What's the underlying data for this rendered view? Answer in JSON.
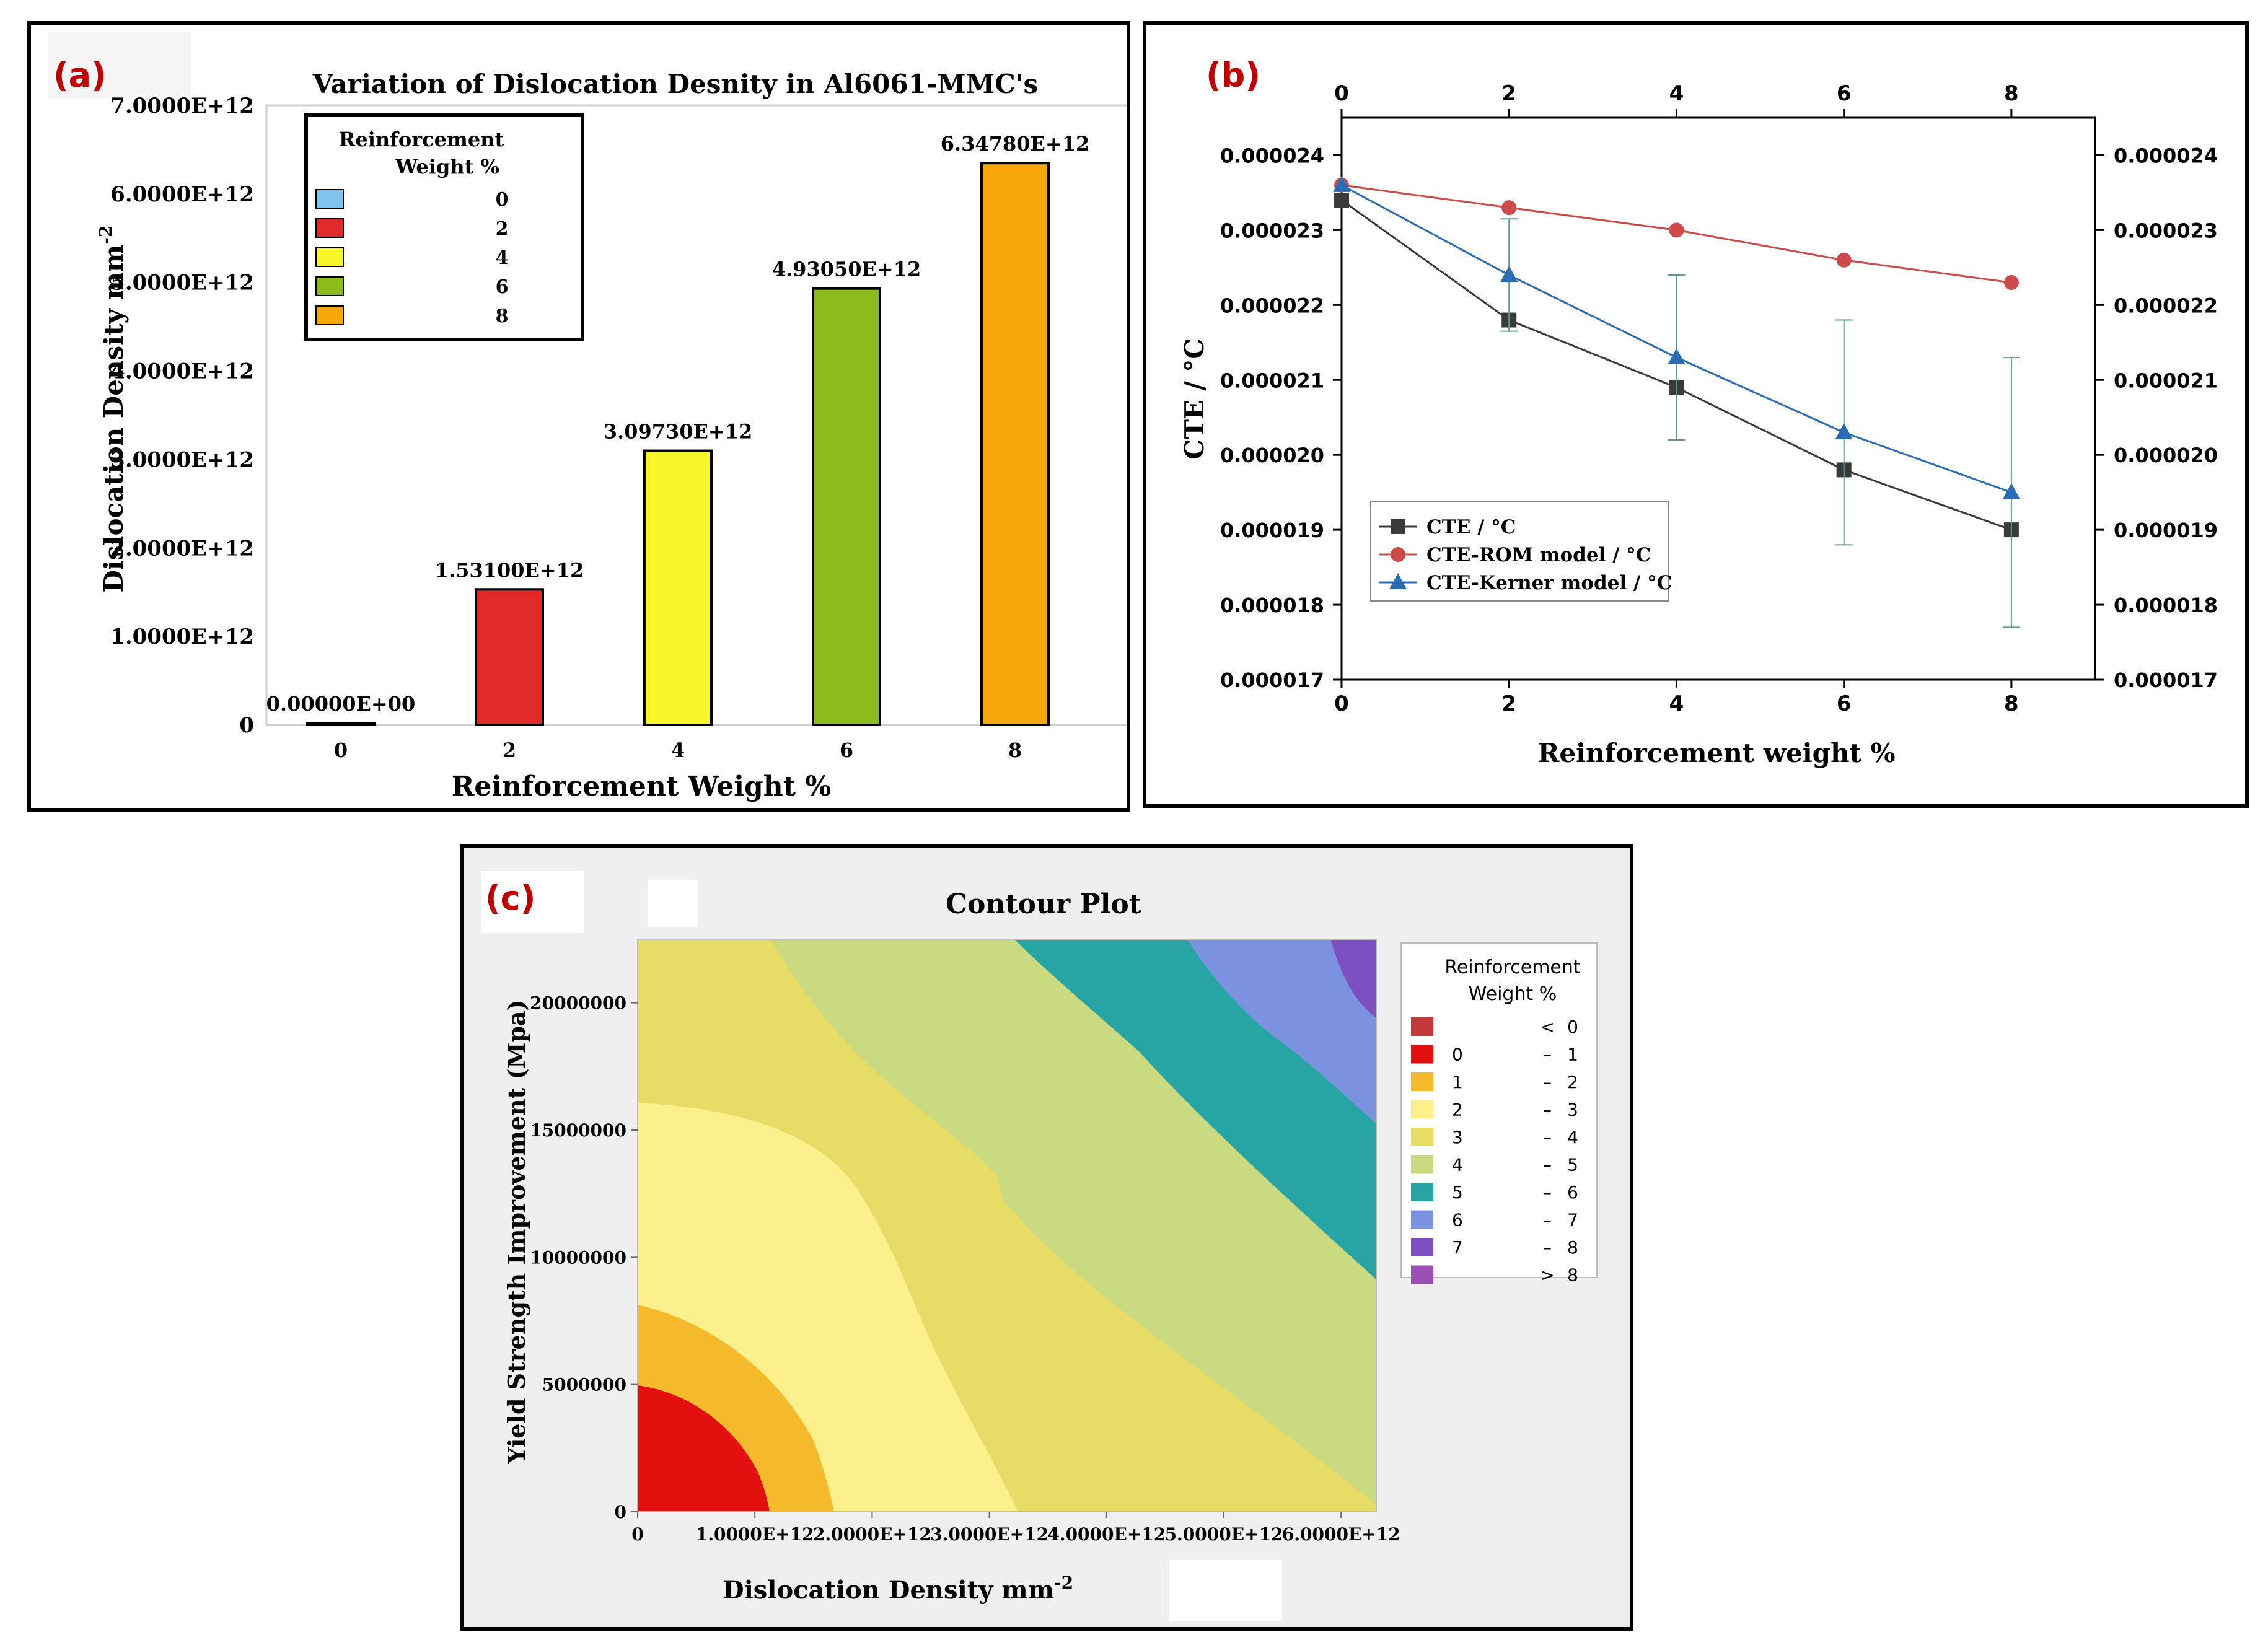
{
  "chart_data": [
    {
      "panel_label": "(a)",
      "type": "bar",
      "title": "Variation of Dislocation Desnity in Al6061-MMC's",
      "xlabel": "Reinforcement Weight %",
      "ylabel": "Dislocation Density  mm",
      "ylabel_sup": "-2",
      "categories": [
        "0",
        "2",
        "4",
        "6",
        "8"
      ],
      "values": [
        0,
        1531000000000.0,
        3097300000000.0,
        4930500000000.0,
        6347800000000.0
      ],
      "value_labels": [
        "0.00000E+00",
        "1.53100E+12",
        "3.09730E+12",
        "4.93050E+12",
        "6.34780E+12"
      ],
      "colors": [
        "#7fc3ee",
        "#e02a2a",
        "#f5f52a",
        "#8cbc1c",
        "#f7a70a"
      ],
      "ylim": [
        0,
        7000000000000.0
      ],
      "yticks": [
        0,
        1000000000000.0,
        2000000000000.0,
        3000000000000.0,
        4000000000000.0,
        5000000000000.0,
        6000000000000.0,
        7000000000000.0
      ],
      "ytick_labels": [
        "0",
        "1.0000E+12",
        "2.0000E+12",
        "3.0000E+12",
        "4.0000E+12",
        "5.0000E+12",
        "6.0000E+12",
        "7.0000E+12"
      ],
      "legend": {
        "title": [
          "Reinforcement",
          "Weight %"
        ],
        "entries": [
          "0",
          "2",
          "4",
          "6",
          "8"
        ],
        "position": "top-left"
      }
    },
    {
      "panel_label": "(b)",
      "type": "line",
      "xlabel": "Reinforcement weight %",
      "ylabel": "CTE / °C",
      "x": [
        0,
        2,
        4,
        6,
        8
      ],
      "xlim": [
        0,
        9
      ],
      "xticks": [
        0,
        2,
        4,
        6,
        8
      ],
      "xtick_labels": [
        "0",
        "2",
        "4",
        "6",
        "8"
      ],
      "ylim": [
        1.7e-05,
        2.45e-05
      ],
      "yticks": [
        1.7e-05,
        1.8e-05,
        1.9e-05,
        2e-05,
        2.1e-05,
        2.2e-05,
        2.3e-05,
        2.4e-05
      ],
      "ytick_labels": [
        "0.000017",
        "0.000018",
        "0.000019",
        "0.000020",
        "0.000021",
        "0.000022",
        "0.000023",
        "0.000024"
      ],
      "series": [
        {
          "name": "CTE / °C",
          "values": [
            2.34e-05,
            2.18e-05,
            2.09e-05,
            1.98e-05,
            1.9e-05
          ],
          "color": "#3a3a3a",
          "marker": "square"
        },
        {
          "name": "CTE-ROM model / °C",
          "values": [
            2.36e-05,
            2.33e-05,
            2.3e-05,
            2.26e-05,
            2.23e-05
          ],
          "color": "#cc4a4a",
          "marker": "circle"
        },
        {
          "name": "CTE-Kerner model / °C",
          "values": [
            2.36e-05,
            2.24e-05,
            2.13e-05,
            2.03e-05,
            1.95e-05
          ],
          "color": "#2a6cb5",
          "marker": "triangle",
          "error": [
            0,
            7.5e-07,
            1.1e-06,
            1.5e-06,
            1.8e-06
          ]
        }
      ],
      "legend": {
        "position": "bottom-left"
      }
    },
    {
      "panel_label": "(c)",
      "type": "contour",
      "title": "Contour Plot",
      "xlabel": "Dislocation Density mm",
      "xlabel_sup": "-2",
      "ylabel": "Yield Strength Improvement (Mpa)",
      "xlim": [
        0,
        6300000000000.0
      ],
      "ylim": [
        0,
        22500000
      ],
      "xticks": [
        0,
        1000000000000.0,
        2000000000000.0,
        3000000000000.0,
        4000000000000.0,
        5000000000000.0,
        6000000000000.0
      ],
      "xtick_labels": [
        "0",
        "1.0000E+12",
        "2.0000E+12",
        "3.0000E+12",
        "4.0000E+12",
        "5.0000E+12",
        "6.0000E+12"
      ],
      "yticks": [
        0,
        5000000,
        10000000,
        15000000,
        20000000
      ],
      "ytick_labels": [
        "0",
        "5000000",
        "10000000",
        "15000000",
        "20000000"
      ],
      "legend": {
        "title": [
          "Reinforcement",
          "Weight %"
        ],
        "position": "right",
        "entries": [
          {
            "lo": "",
            "sep": "<",
            "hi": "0",
            "color": "#c23b3b"
          },
          {
            "lo": "0",
            "sep": "–",
            "hi": "1",
            "color": "#e31010"
          },
          {
            "lo": "1",
            "sep": "–",
            "hi": "2",
            "color": "#f5b92c"
          },
          {
            "lo": "2",
            "sep": "–",
            "hi": "3",
            "color": "#fbf08b"
          },
          {
            "lo": "3",
            "sep": "–",
            "hi": "4",
            "color": "#e7dc66"
          },
          {
            "lo": "4",
            "sep": "–",
            "hi": "5",
            "color": "#c9da80"
          },
          {
            "lo": "5",
            "sep": "–",
            "hi": "6",
            "color": "#27a5a5"
          },
          {
            "lo": "6",
            "sep": "–",
            "hi": "7",
            "color": "#7b93de"
          },
          {
            "lo": "7",
            "sep": "–",
            "hi": "8",
            "color": "#7e4fc2"
          },
          {
            "lo": "",
            "sep": ">",
            "hi": "8",
            "color": "#9c4fb3"
          }
        ]
      }
    }
  ]
}
